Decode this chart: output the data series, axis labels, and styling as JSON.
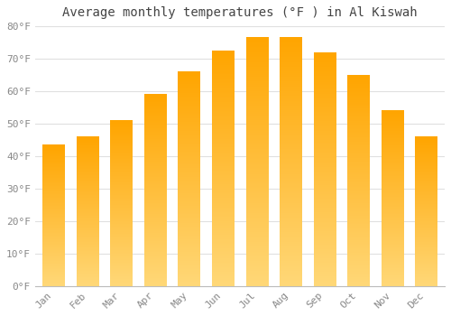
{
  "title": "Average monthly temperatures (°F ) in Al Kiswah",
  "months": [
    "Jan",
    "Feb",
    "Mar",
    "Apr",
    "May",
    "Jun",
    "Jul",
    "Aug",
    "Sep",
    "Oct",
    "Nov",
    "Dec"
  ],
  "values": [
    43.5,
    46,
    51,
    59,
    66,
    72.5,
    76.5,
    76.5,
    72,
    65,
    54,
    46
  ],
  "bar_color_top": "#FFA500",
  "bar_color_bottom": "#FFD878",
  "ylim": [
    0,
    80
  ],
  "yticks": [
    0,
    10,
    20,
    30,
    40,
    50,
    60,
    70,
    80
  ],
  "ytick_labels": [
    "0°F",
    "10°F",
    "20°F",
    "30°F",
    "40°F",
    "50°F",
    "60°F",
    "70°F",
    "80°F"
  ],
  "bg_color": "#ffffff",
  "grid_color": "#e0e0e0",
  "title_fontsize": 10,
  "tick_fontsize": 8,
  "tick_color": "#888888",
  "title_color": "#444444",
  "font_family": "monospace",
  "bar_width": 0.65,
  "n_slices": 200
}
